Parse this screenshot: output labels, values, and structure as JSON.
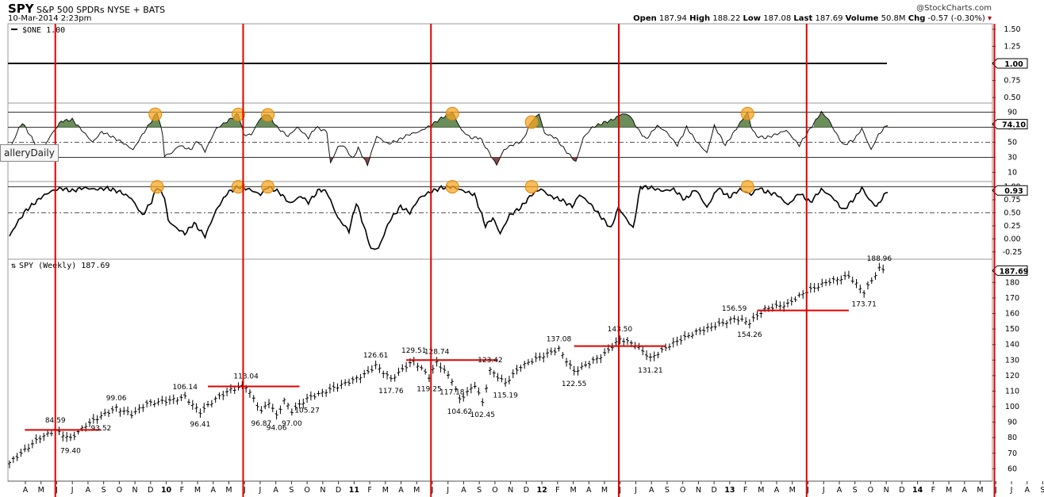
{
  "header": {
    "ticker": "SPY",
    "name": "S&P 500 SPDRs NYSE + BATS",
    "date": "10-Mar-2014 2:23pm",
    "watermark": "@StockCharts.com",
    "quote": {
      "open_label": "Open",
      "open": "187.94",
      "high_label": "High",
      "high": "188.22",
      "low_label": "Low",
      "low": "187.08",
      "last_label": "Last",
      "last": "187.69",
      "volume_label": "Volume",
      "volume": "50.8M",
      "chg_label": "Chg",
      "chg": "-0.57 (-0.30%)"
    }
  },
  "gallery_tab": "alleryDaily",
  "colors": {
    "vline": "#e00000",
    "area_green": "#6b8e5a",
    "area_red": "#8c4a4a",
    "circle": "#f5a623",
    "hline": "#e00000"
  },
  "chart_data": [
    {
      "type": "line",
      "panel": "one",
      "legend": "$ONE 1.00",
      "value_tag": "1.00",
      "y_ticks": [
        "1.50",
        "1.25",
        "1.00",
        "0.75",
        "0.50"
      ],
      "y_tick_values": [
        1.5,
        1.25,
        1.0,
        0.75,
        0.5
      ],
      "ylim": [
        0.42,
        1.58
      ],
      "value": 1.0
    },
    {
      "type": "area",
      "panel": "rsi",
      "value_tag": "74.10",
      "y_ticks": [
        "90",
        "70",
        "50",
        "30",
        "10"
      ],
      "y_tick_values": [
        90,
        70,
        50,
        30,
        10
      ],
      "ylim": [
        0,
        100
      ],
      "levels": [
        90,
        70,
        30
      ],
      "dash_level": 50,
      "start": 40,
      "end": 74.1,
      "anchors": [
        [
          0,
          40
        ],
        [
          5,
          68
        ],
        [
          7,
          76
        ],
        [
          13,
          52
        ],
        [
          17,
          36
        ],
        [
          22,
          58
        ],
        [
          28,
          78
        ],
        [
          34,
          80
        ],
        [
          40,
          64
        ],
        [
          45,
          50
        ],
        [
          50,
          64
        ],
        [
          55,
          58
        ],
        [
          61,
          50
        ],
        [
          67,
          40
        ],
        [
          72,
          60
        ],
        [
          78,
          82
        ],
        [
          80,
          90
        ],
        [
          83,
          60
        ],
        [
          84,
          32
        ],
        [
          88,
          36
        ],
        [
          92,
          46
        ],
        [
          98,
          40
        ],
        [
          102,
          52
        ],
        [
          106,
          38
        ],
        [
          112,
          68
        ],
        [
          118,
          78
        ],
        [
          124,
          88
        ],
        [
          127,
          60
        ],
        [
          131,
          60
        ],
        [
          136,
          82
        ],
        [
          140,
          88
        ],
        [
          145,
          70
        ],
        [
          151,
          58
        ],
        [
          156,
          70
        ],
        [
          162,
          56
        ],
        [
          166,
          70
        ],
        [
          172,
          64
        ],
        [
          174,
          22
        ],
        [
          178,
          44
        ],
        [
          181,
          46
        ],
        [
          186,
          28
        ],
        [
          189,
          42
        ],
        [
          194,
          20
        ],
        [
          199,
          58
        ],
        [
          205,
          48
        ],
        [
          210,
          52
        ],
        [
          216,
          60
        ],
        [
          222,
          64
        ],
        [
          228,
          72
        ],
        [
          234,
          82
        ],
        [
          240,
          90
        ],
        [
          245,
          66
        ],
        [
          250,
          56
        ],
        [
          255,
          56
        ],
        [
          260,
          36
        ],
        [
          264,
          20
        ],
        [
          268,
          40
        ],
        [
          272,
          46
        ],
        [
          278,
          52
        ],
        [
          283,
          78
        ],
        [
          287,
          88
        ],
        [
          290,
          62
        ],
        [
          296,
          56
        ],
        [
          301,
          40
        ],
        [
          307,
          24
        ],
        [
          311,
          56
        ],
        [
          316,
          70
        ],
        [
          322,
          76
        ],
        [
          327,
          80
        ],
        [
          332,
          88
        ],
        [
          336,
          86
        ],
        [
          341,
          66
        ],
        [
          345,
          54
        ],
        [
          351,
          72
        ],
        [
          356,
          64
        ],
        [
          362,
          46
        ],
        [
          367,
          70
        ],
        [
          372,
          52
        ],
        [
          378,
          36
        ],
        [
          382,
          72
        ],
        [
          388,
          46
        ],
        [
          395,
          72
        ],
        [
          400,
          90
        ],
        [
          402,
          70
        ],
        [
          405,
          58
        ],
        [
          410,
          56
        ],
        [
          415,
          60
        ],
        [
          421,
          66
        ],
        [
          428,
          46
        ],
        [
          434,
          68
        ],
        [
          440,
          90
        ],
        [
          444,
          80
        ],
        [
          447,
          66
        ],
        [
          452,
          46
        ],
        [
          458,
          54
        ],
        [
          462,
          68
        ],
        [
          467,
          40
        ],
        [
          471,
          60
        ],
        [
          476,
          74.1
        ]
      ],
      "circle_indices": [
        79,
        124,
        140,
        240,
        283,
        400
      ]
    },
    {
      "type": "line",
      "panel": "stoch",
      "value_tag": "0.93",
      "y_ticks": [
        "1.00",
        "0.75",
        "0.50",
        "0.25",
        "0.00",
        "-0.25"
      ],
      "y_tick_values": [
        1.0,
        0.75,
        0.5,
        0.25,
        0.0,
        -0.25
      ],
      "ylim": [
        -0.36,
        1.07
      ],
      "levels": [
        1.0
      ],
      "dash_level": 0.5,
      "anchors": [
        [
          0,
          0.05
        ],
        [
          4,
          0.3
        ],
        [
          9,
          0.55
        ],
        [
          14,
          0.7
        ],
        [
          18,
          0.82
        ],
        [
          23,
          0.92
        ],
        [
          28,
          0.97
        ],
        [
          34,
          0.92
        ],
        [
          40,
          0.98
        ],
        [
          47,
          0.95
        ],
        [
          53,
          0.97
        ],
        [
          60,
          0.9
        ],
        [
          66,
          0.78
        ],
        [
          72,
          0.45
        ],
        [
          77,
          0.72
        ],
        [
          80,
          1.0
        ],
        [
          84,
          0.8
        ],
        [
          86,
          0.35
        ],
        [
          90,
          0.22
        ],
        [
          95,
          0.1
        ],
        [
          100,
          0.3
        ],
        [
          106,
          0.05
        ],
        [
          112,
          0.55
        ],
        [
          118,
          0.88
        ],
        [
          124,
          1.0
        ],
        [
          130,
          0.95
        ],
        [
          136,
          0.85
        ],
        [
          140,
          1.0
        ],
        [
          146,
          0.9
        ],
        [
          152,
          0.68
        ],
        [
          158,
          0.82
        ],
        [
          162,
          0.7
        ],
        [
          168,
          0.95
        ],
        [
          172,
          0.9
        ],
        [
          178,
          0.4
        ],
        [
          184,
          0.15
        ],
        [
          188,
          0.7
        ],
        [
          192,
          0.25
        ],
        [
          196,
          -0.2
        ],
        [
          200,
          -0.18
        ],
        [
          206,
          0.35
        ],
        [
          212,
          0.62
        ],
        [
          217,
          0.5
        ],
        [
          222,
          0.78
        ],
        [
          228,
          0.9
        ],
        [
          234,
          0.98
        ],
        [
          240,
          1.0
        ],
        [
          246,
          0.92
        ],
        [
          252,
          0.85
        ],
        [
          258,
          0.25
        ],
        [
          262,
          0.4
        ],
        [
          266,
          0.1
        ],
        [
          271,
          0.45
        ],
        [
          277,
          0.6
        ],
        [
          283,
          0.85
        ],
        [
          288,
          0.96
        ],
        [
          293,
          0.82
        ],
        [
          299,
          0.75
        ],
        [
          305,
          0.62
        ],
        [
          309,
          0.85
        ],
        [
          314,
          0.7
        ],
        [
          320,
          0.45
        ],
        [
          326,
          0.2
        ],
        [
          330,
          0.6
        ],
        [
          334,
          0.4
        ],
        [
          338,
          0.2
        ],
        [
          342,
          1.0
        ],
        [
          348,
          0.98
        ],
        [
          354,
          0.92
        ],
        [
          360,
          0.95
        ],
        [
          366,
          0.75
        ],
        [
          372,
          0.95
        ],
        [
          378,
          0.6
        ],
        [
          384,
          0.98
        ],
        [
          390,
          0.8
        ],
        [
          396,
          0.95
        ],
        [
          402,
          0.85
        ],
        [
          406,
          0.98
        ],
        [
          410,
          0.9
        ],
        [
          416,
          0.85
        ],
        [
          422,
          0.65
        ],
        [
          428,
          0.88
        ],
        [
          434,
          0.7
        ],
        [
          440,
          0.95
        ],
        [
          446,
          0.8
        ],
        [
          452,
          0.55
        ],
        [
          458,
          0.78
        ],
        [
          462,
          0.98
        ],
        [
          466,
          0.75
        ],
        [
          470,
          0.62
        ],
        [
          476,
          0.93
        ]
      ],
      "circle_indices": [
        80,
        124,
        140,
        240,
        283,
        400
      ]
    },
    {
      "type": "ohlc",
      "panel": "price",
      "legend": "SPY (Weekly) 187.69",
      "value_tag": "187.69",
      "y_ticks": [
        "180",
        "170",
        "160",
        "150",
        "140",
        "130",
        "120",
        "110",
        "100",
        "90",
        "80",
        "70",
        "60"
      ],
      "y_tick_values": [
        180,
        170,
        160,
        150,
        140,
        130,
        120,
        110,
        100,
        90,
        80,
        70,
        60
      ],
      "ylim": [
        52,
        195
      ],
      "x_labels": [
        "A",
        "M",
        "J",
        "J",
        "A",
        "S",
        "O",
        "N",
        "D",
        "10",
        "F",
        "M",
        "A",
        "M",
        "J",
        "J",
        "A",
        "S",
        "O",
        "N",
        "D",
        "11",
        "F",
        "M",
        "A",
        "M",
        "J",
        "J",
        "A",
        "S",
        "O",
        "N",
        "D",
        "12",
        "F",
        "M",
        "A",
        "M",
        "J",
        "J",
        "A",
        "S",
        "O",
        "N",
        "D",
        "13",
        "F",
        "M",
        "A",
        "M",
        "J",
        "J",
        "A",
        "S",
        "O",
        "N",
        "D",
        "14",
        "F",
        "M",
        "A",
        "M",
        "J",
        "J",
        "A",
        "S",
        "O"
      ],
      "bold_x_labels": [
        "10",
        "11",
        "12",
        "13",
        "14"
      ],
      "vertical_line_months": [
        1,
        13,
        25,
        37,
        49,
        61
      ],
      "anchors": [
        [
          0,
          64
        ],
        [
          2,
          72
        ],
        [
          4,
          80
        ],
        [
          6,
          84.59
        ],
        [
          8,
          79.4
        ],
        [
          10,
          88
        ],
        [
          12,
          94
        ],
        [
          14,
          99.06
        ],
        [
          16,
          95
        ],
        [
          18,
          102
        ],
        [
          21,
          104
        ],
        [
          23,
          106.14
        ],
        [
          25,
          96.41
        ],
        [
          27,
          105
        ],
        [
          29,
          111
        ],
        [
          31,
          113.04
        ],
        [
          33,
          96.87
        ],
        [
          34,
          103
        ],
        [
          35,
          94.06
        ],
        [
          36,
          104
        ],
        [
          37,
          97
        ],
        [
          39,
          105.27
        ],
        [
          41,
          109
        ],
        [
          43,
          113
        ],
        [
          45,
          117
        ],
        [
          47,
          122
        ],
        [
          48,
          126.61
        ],
        [
          50,
          117.76
        ],
        [
          52,
          126
        ],
        [
          53,
          129.51
        ],
        [
          55,
          119.25
        ],
        [
          56,
          128.74
        ],
        [
          58,
          117.18
        ],
        [
          59,
          104.62
        ],
        [
          61,
          114
        ],
        [
          62,
          102.45
        ],
        [
          63,
          123.42
        ],
        [
          65,
          115.19
        ],
        [
          67,
          126
        ],
        [
          70,
          133
        ],
        [
          72,
          137.08
        ],
        [
          74,
          122.55
        ],
        [
          76,
          128
        ],
        [
          78,
          134
        ],
        [
          80,
          143.5
        ],
        [
          82,
          140
        ],
        [
          84,
          131.21
        ],
        [
          87,
          141
        ],
        [
          90,
          148
        ],
        [
          93,
          153
        ],
        [
          95,
          156.59
        ],
        [
          97,
          154.26
        ],
        [
          99,
          163
        ],
        [
          102,
          166
        ],
        [
          104,
          173
        ],
        [
          107,
          180
        ],
        [
          110,
          184
        ],
        [
          112,
          173.71
        ],
        [
          114,
          188.96
        ],
        [
          115,
          187.69
        ]
      ],
      "labels_high": [
        [
          6,
          "84.59"
        ],
        [
          14,
          "99.06"
        ],
        [
          23,
          "106.14"
        ],
        [
          31,
          "113.04"
        ],
        [
          48,
          "126.61"
        ],
        [
          53,
          "129.51"
        ],
        [
          56,
          "128.74"
        ],
        [
          63,
          "123.42"
        ],
        [
          72,
          "137.08"
        ],
        [
          80,
          "143.50"
        ],
        [
          95,
          "156.59"
        ],
        [
          114,
          "188.96"
        ]
      ],
      "labels_low": [
        [
          8,
          "79.40"
        ],
        [
          12,
          "93.52"
        ],
        [
          25,
          "96.41"
        ],
        [
          33,
          "96.87"
        ],
        [
          35,
          "94.06"
        ],
        [
          37,
          "97.00"
        ],
        [
          39,
          "105.27"
        ],
        [
          50,
          "117.76"
        ],
        [
          55,
          "119.25"
        ],
        [
          58,
          "117.18"
        ],
        [
          59,
          "104.62"
        ],
        [
          62,
          "102.45"
        ],
        [
          65,
          "115.19"
        ],
        [
          74,
          "122.55"
        ],
        [
          84,
          "131.21"
        ],
        [
          97,
          "154.26"
        ],
        [
          112,
          "173.71"
        ]
      ],
      "red_hlines": [
        [
          2,
          12,
          85
        ],
        [
          26,
          38,
          113
        ],
        [
          52,
          64,
          130
        ],
        [
          74,
          86,
          139
        ],
        [
          98,
          110,
          162
        ]
      ]
    }
  ]
}
